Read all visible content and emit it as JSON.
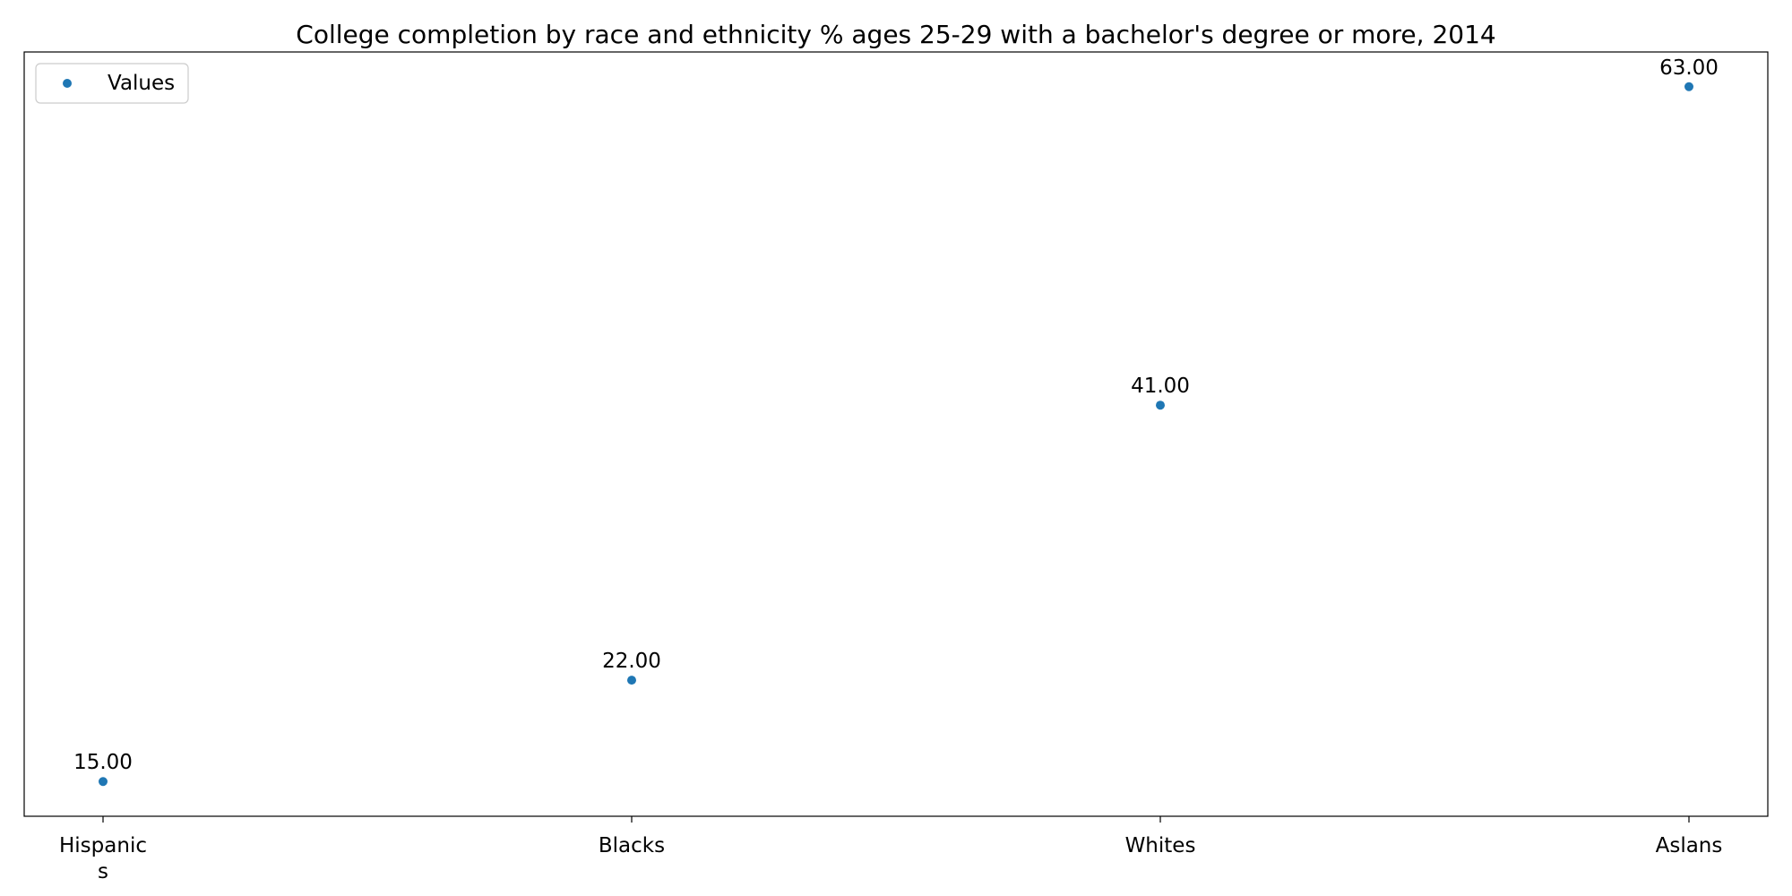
{
  "chart_data": {
    "type": "scatter",
    "title": "College completion by race and ethnicity % ages 25-29 with a bachelor's degree or more, 2014",
    "xlabel": "",
    "ylabel": "",
    "categories": [
      "Hispanic\ns",
      "Blacks",
      "Whites",
      "Aslans"
    ],
    "series": [
      {
        "name": "Values",
        "values": [
          15,
          22,
          41,
          63
        ],
        "labels": [
          "15.00",
          "22.00",
          "41.00",
          "63.00"
        ],
        "color": "#1f77b4"
      }
    ],
    "ylim": [
      12.6,
      65.4
    ],
    "y_ticks_shown": false,
    "grid": false,
    "legend": "top-left"
  }
}
